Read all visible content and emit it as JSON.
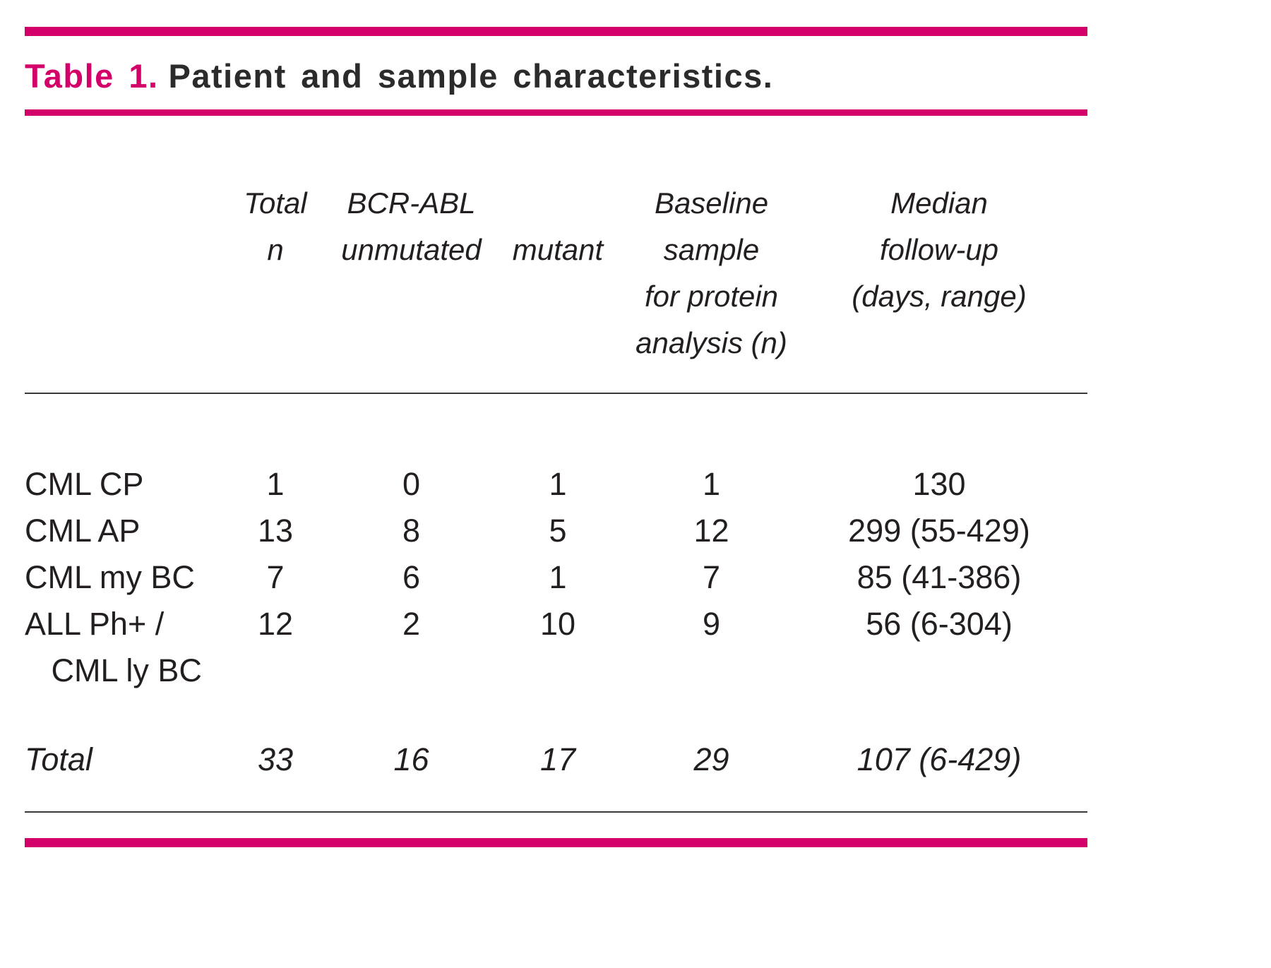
{
  "title": {
    "label": "Table 1.",
    "text": "Patient and sample characteristics."
  },
  "colors": {
    "accent": "#d4006a",
    "text": "#231f20"
  },
  "table": {
    "headers": [
      "Total\nn",
      "BCR-ABL\nunmutated",
      "mutant",
      "Baseline\nsample\nfor protein\nanalysis (n)",
      "Median\nfollow-up\n(days, range)"
    ],
    "rows": [
      {
        "label": "CML CP",
        "values": [
          "1",
          "0",
          "1",
          "1",
          "130"
        ]
      },
      {
        "label": "CML AP",
        "values": [
          "13",
          "8",
          "5",
          "12",
          "299 (55-429)"
        ]
      },
      {
        "label": "CML my BC",
        "values": [
          "7",
          "6",
          "1",
          "7",
          "85 (41-386)"
        ]
      },
      {
        "label": "ALL Ph+ /\n   CML ly BC",
        "values": [
          "12",
          "2",
          "10",
          "9",
          "56 (6-304)"
        ]
      }
    ],
    "total": {
      "label": "Total",
      "values": [
        "33",
        "16",
        "17",
        "29",
        "107 (6-429)"
      ]
    }
  }
}
